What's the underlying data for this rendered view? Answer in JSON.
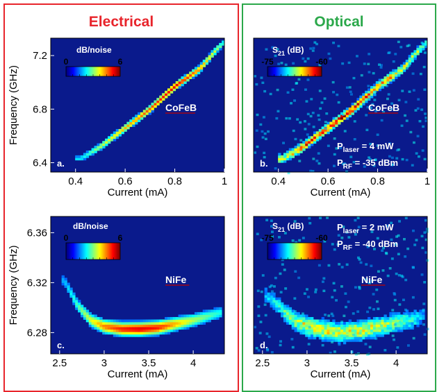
{
  "colors": {
    "electrical": "#e8242b",
    "optical": "#2ba84a",
    "plot_bg": "#0a1a8c",
    "label": "#ffffff",
    "underline": "#c00000"
  },
  "columns": {
    "electrical": "Electrical",
    "optical": "Optical"
  },
  "chart_data": [
    {
      "type": "heatmap",
      "panel": "a.",
      "material": "CoFeB",
      "colorbar": {
        "title": "dB/noise",
        "min": "0",
        "max": "6"
      },
      "xlabel": "Current (mA)",
      "ylabel": "Frequency (GHz)",
      "xticks": [
        "0.4",
        "0.6",
        "0.8",
        "1"
      ],
      "yticks": [
        "6.4",
        "6.8",
        "7.2"
      ],
      "xlim": [
        0.3,
        1.0
      ],
      "ylim": [
        6.33,
        7.33
      ],
      "ridge": {
        "x": [
          0.42,
          0.5,
          0.6,
          0.7,
          0.8,
          0.9,
          0.97,
          1.0
        ],
        "y": [
          6.43,
          6.52,
          6.66,
          6.8,
          6.97,
          7.1,
          7.25,
          7.3
        ],
        "width": 0.02,
        "peak": [
          0.35,
          0.55,
          0.7,
          0.8,
          0.9,
          0.75,
          0.55,
          0.4
        ]
      }
    },
    {
      "type": "heatmap",
      "panel": "b.",
      "material": "CoFeB",
      "colorbar": {
        "title_main": "S",
        "title_sub": "21",
        "title_unit": " (dB)",
        "min": "-75",
        "max": "-60"
      },
      "annotations": [
        {
          "main": "P",
          "sub": "laser",
          "text": " = 4 mW"
        },
        {
          "main": "P",
          "sub": "RF",
          "text": " = -35 dBm"
        }
      ],
      "xlabel": "Current (mA)",
      "xticks": [
        "0.4",
        "0.6",
        "0.8",
        "1"
      ],
      "xlim": [
        0.3,
        1.0
      ],
      "ylim": [
        6.33,
        7.33
      ],
      "ridge": {
        "x": [
          0.42,
          0.5,
          0.6,
          0.7,
          0.8,
          0.9,
          0.97,
          1.0
        ],
        "y": [
          6.43,
          6.52,
          6.66,
          6.8,
          6.97,
          7.1,
          7.25,
          7.3
        ],
        "width": 0.025,
        "peak": [
          0.6,
          0.75,
          0.85,
          0.8,
          0.75,
          0.6,
          0.5,
          0.4
        ]
      }
    },
    {
      "type": "heatmap",
      "panel": "c.",
      "material": "NiFe",
      "colorbar": {
        "title": "dB/noise",
        "min": "0",
        "max": "6"
      },
      "xlabel": "Current (mA)",
      "ylabel": "Frequency (GHz)",
      "xticks": [
        "2.5",
        "3",
        "3.5",
        "4"
      ],
      "yticks": [
        "6.28",
        "6.32",
        "6.36"
      ],
      "xlim": [
        2.4,
        4.35
      ],
      "ylim": [
        6.263,
        6.373
      ],
      "ridge": {
        "x": [
          2.55,
          2.7,
          2.85,
          3.0,
          3.2,
          3.4,
          3.6,
          3.8,
          4.0,
          4.2,
          4.3
        ],
        "y": [
          6.322,
          6.302,
          6.29,
          6.285,
          6.283,
          6.283,
          6.284,
          6.287,
          6.29,
          6.294,
          6.296
        ],
        "width": 0.004,
        "peak": [
          0.3,
          0.45,
          0.6,
          0.75,
          0.85,
          0.9,
          0.85,
          0.7,
          0.55,
          0.45,
          0.4
        ]
      }
    },
    {
      "type": "heatmap",
      "panel": "d.",
      "material": "NiFe",
      "colorbar": {
        "title_main": "S",
        "title_sub": "21",
        "title_unit": " (dB)",
        "min": "-75",
        "max": "-60"
      },
      "annotations": [
        {
          "main": "P",
          "sub": "laser",
          "text": " = 2 mW"
        },
        {
          "main": "P",
          "sub": "RF",
          "text": " = -40 dBm"
        }
      ],
      "xlabel": "Current (mA)",
      "xticks": [
        "2.5",
        "3",
        "3.5",
        "4"
      ],
      "xlim": [
        2.4,
        4.35
      ],
      "ylim": [
        6.263,
        6.373
      ],
      "ridge": {
        "x": [
          2.55,
          2.7,
          2.85,
          3.0,
          3.2,
          3.4,
          3.6,
          3.8,
          4.0,
          4.2,
          4.3
        ],
        "y": [
          6.31,
          6.3,
          6.29,
          6.285,
          6.282,
          6.28,
          6.282,
          6.285,
          6.288,
          6.291,
          6.293
        ],
        "width": 0.006,
        "peak": [
          0.3,
          0.4,
          0.5,
          0.6,
          0.6,
          0.55,
          0.6,
          0.55,
          0.5,
          0.4,
          0.3
        ]
      }
    }
  ]
}
